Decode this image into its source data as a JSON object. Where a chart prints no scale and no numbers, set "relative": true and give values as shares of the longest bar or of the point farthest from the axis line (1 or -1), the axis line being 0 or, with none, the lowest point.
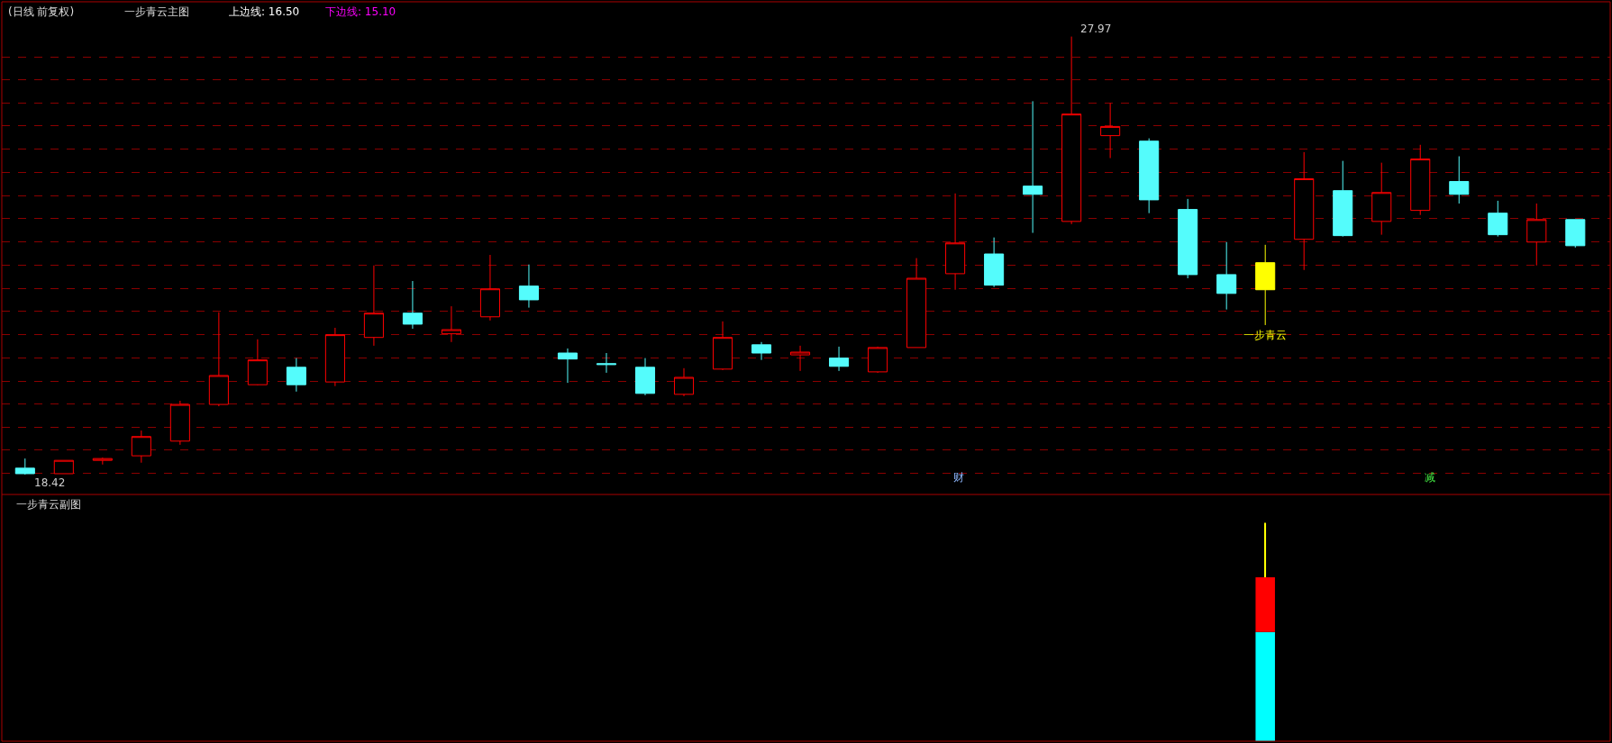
{
  "chart_data": [
    {
      "type": "candlestick",
      "title": "(日线 前复权)",
      "grid": "y",
      "tick_labels": false,
      "yticks": [
        {
          "value": 18.44,
          "label": null
        },
        {
          "value": 18.95,
          "label": null
        },
        {
          "value": 19.45,
          "label": null
        },
        {
          "value": 19.96,
          "label": null
        },
        {
          "value": 20.46,
          "label": null
        },
        {
          "value": 20.97,
          "label": null
        },
        {
          "value": 21.47,
          "label": null
        },
        {
          "value": 21.98,
          "label": null
        },
        {
          "value": 22.48,
          "label": null
        },
        {
          "value": 22.99,
          "label": null
        },
        {
          "value": 23.49,
          "label": null
        },
        {
          "value": 24.0,
          "label": null
        },
        {
          "value": 24.5,
          "label": null
        },
        {
          "value": 25.01,
          "label": null
        },
        {
          "value": 25.51,
          "label": null
        },
        {
          "value": 26.02,
          "label": null
        },
        {
          "value": 26.52,
          "label": null
        },
        {
          "value": 27.03,
          "label": null
        },
        {
          "value": 27.53,
          "label": null
        }
      ],
      "categories": [
        null,
        null,
        null,
        null,
        null,
        null,
        null,
        null,
        null,
        null,
        null,
        null,
        null,
        null,
        null,
        null,
        null,
        null,
        null,
        null,
        null,
        null,
        null,
        null,
        null,
        null,
        null,
        null,
        null,
        null,
        null,
        null,
        null,
        null,
        null,
        null,
        null,
        null,
        null,
        null,
        null
      ],
      "ohlc": [
        [
          18.56,
          18.77,
          18.42,
          18.44
        ],
        [
          18.44,
          18.73,
          18.44,
          18.73
        ],
        [
          18.73,
          18.79,
          18.64,
          18.77
        ],
        [
          18.83,
          19.38,
          18.68,
          19.25
        ],
        [
          19.15,
          20.03,
          19.07,
          19.95
        ],
        [
          19.95,
          21.96,
          19.91,
          20.58
        ],
        [
          20.38,
          21.37,
          20.37,
          20.92
        ],
        [
          20.76,
          20.96,
          20.23,
          20.38
        ],
        [
          20.44,
          21.62,
          20.35,
          21.47
        ],
        [
          21.41,
          22.98,
          21.23,
          21.94
        ],
        [
          21.94,
          22.64,
          21.6,
          21.7
        ],
        [
          21.49,
          22.09,
          21.31,
          21.58
        ],
        [
          21.86,
          23.21,
          21.78,
          22.47
        ],
        [
          22.53,
          23.0,
          22.06,
          22.23
        ],
        [
          21.07,
          21.17,
          20.42,
          20.94
        ],
        [
          20.84,
          21.07,
          20.64,
          20.82
        ],
        [
          20.76,
          20.96,
          20.15,
          20.19
        ],
        [
          20.17,
          20.74,
          20.13,
          20.54
        ],
        [
          20.72,
          21.76,
          20.7,
          21.41
        ],
        [
          21.25,
          21.31,
          20.92,
          21.07
        ],
        [
          21.03,
          21.23,
          20.68,
          21.09
        ],
        [
          20.96,
          21.21,
          20.68,
          20.78
        ],
        [
          20.66,
          21.21,
          20.64,
          21.19
        ],
        [
          21.19,
          23.14,
          21.19,
          22.7
        ],
        [
          22.8,
          24.55,
          22.45,
          23.47
        ],
        [
          23.23,
          23.59,
          22.51,
          22.55
        ],
        [
          24.71,
          26.56,
          23.69,
          24.53
        ],
        [
          23.94,
          27.97,
          23.88,
          26.28
        ],
        [
          25.81,
          26.52,
          25.32,
          26.01
        ],
        [
          25.69,
          25.75,
          24.12,
          24.41
        ],
        [
          24.2,
          24.43,
          22.7,
          22.78
        ],
        [
          22.78,
          23.49,
          22.02,
          22.37
        ],
        [
          23.04,
          23.43,
          21.68,
          22.45
        ],
        [
          23.55,
          25.45,
          22.88,
          24.87
        ],
        [
          24.61,
          25.26,
          23.61,
          23.63
        ],
        [
          23.94,
          25.22,
          23.65,
          24.57
        ],
        [
          24.18,
          25.61,
          24.08,
          25.3
        ],
        [
          24.81,
          25.36,
          24.33,
          24.53
        ],
        [
          24.12,
          24.39,
          23.61,
          23.65
        ],
        [
          23.49,
          24.33,
          22.98,
          23.98
        ],
        [
          23.98,
          23.98,
          23.37,
          23.41
        ]
      ],
      "colors": [
        "#54fcfc",
        "#ff0000",
        "#ff0000",
        "#ff0000",
        "#ff0000",
        "#ff0000",
        "#ff0000",
        "#54fcfc",
        "#ff0000",
        "#ff0000",
        "#54fcfc",
        "#ff0000",
        "#ff0000",
        "#54fcfc",
        "#54fcfc",
        "#54fcfc",
        "#54fcfc",
        "#ff0000",
        "#ff0000",
        "#54fcfc",
        "#ff0000",
        "#54fcfc",
        "#ff0000",
        "#ff0000",
        "#ff0000",
        "#54fcfc",
        "#54fcfc",
        "#ff0000",
        "#ff0000",
        "#54fcfc",
        "#54fcfc",
        "#54fcfc",
        "#ffff00",
        "#ff0000",
        "#54fcfc",
        "#ff0000",
        "#ff0000",
        "#54fcfc",
        "#54fcfc",
        "#ff0000",
        "#54fcfc"
      ],
      "annotations": [
        "一步青云主图",
        "上边线: 16.50",
        "下边线: 15.10",
        "财",
        "减",
        "27.97",
        "18.42",
        {
          "text": "一步青云",
          "y": 21.68
        }
      ]
    },
    {
      "type": "bar",
      "title": "一步青云副图",
      "relative": true,
      "stacked": true,
      "tick_labels": false,
      "categories": [
        null,
        null,
        null,
        null,
        null,
        null,
        null,
        null,
        null,
        null,
        null,
        null,
        null,
        null,
        null,
        null,
        null,
        null,
        null,
        null,
        null,
        null,
        null,
        null,
        null,
        null,
        null,
        null,
        null,
        null,
        null,
        null,
        null,
        null,
        null,
        null,
        null,
        null,
        null,
        null,
        null
      ],
      "series": [
        {
          "color": "#00ffff",
          "values": [
            null,
            null,
            null,
            null,
            null,
            null,
            null,
            null,
            null,
            null,
            null,
            null,
            null,
            null,
            null,
            null,
            null,
            null,
            null,
            null,
            null,
            null,
            null,
            null,
            null,
            null,
            null,
            null,
            null,
            null,
            null,
            null,
            0.5,
            null,
            null,
            null,
            null,
            null,
            null,
            null,
            null
          ]
        },
        {
          "color": "#ff0000",
          "values": [
            null,
            null,
            null,
            null,
            null,
            null,
            null,
            null,
            null,
            null,
            null,
            null,
            null,
            null,
            null,
            null,
            null,
            null,
            null,
            null,
            null,
            null,
            null,
            null,
            null,
            null,
            null,
            null,
            null,
            null,
            null,
            null,
            0.25,
            null,
            null,
            null,
            null,
            null,
            null,
            null,
            null
          ]
        },
        {
          "color": "#ffff00",
          "values": [
            null,
            null,
            null,
            null,
            null,
            null,
            null,
            null,
            null,
            null,
            null,
            null,
            null,
            null,
            null,
            null,
            null,
            null,
            null,
            null,
            null,
            null,
            null,
            null,
            null,
            null,
            null,
            null,
            null,
            null,
            null,
            null,
            0.25,
            null,
            null,
            null,
            null,
            null,
            null,
            null,
            null
          ]
        }
      ]
    }
  ]
}
